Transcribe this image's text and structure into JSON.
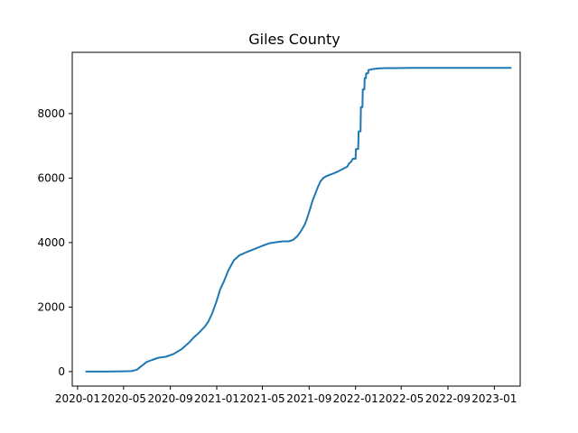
{
  "chart_data": {
    "type": "line",
    "title": "Giles County",
    "xlabel": "",
    "ylabel": "",
    "grid": false,
    "x_is_date": true,
    "xlim": [
      "2019-12-18",
      "2023-03-10"
    ],
    "ylim": [
      -450,
      9900
    ],
    "x_ticks": [
      "2020-01",
      "2020-05",
      "2020-09",
      "2021-01",
      "2021-05",
      "2021-09",
      "2022-01",
      "2022-05",
      "2022-09",
      "2023-01"
    ],
    "y_ticks": [
      0,
      2000,
      4000,
      6000,
      8000
    ],
    "y_tick_labels": [
      "0",
      "2000",
      "4000",
      "6000",
      "8000"
    ],
    "series": [
      {
        "color": "#1f77b4",
        "x": [
          "2020-01-22",
          "2020-03-15",
          "2020-05-01",
          "2020-05-22",
          "2020-06-05",
          "2020-06-20",
          "2020-07-01",
          "2020-07-15",
          "2020-08-01",
          "2020-08-20",
          "2020-09-10",
          "2020-10-01",
          "2020-10-20",
          "2020-11-01",
          "2020-11-15",
          "2020-12-01",
          "2020-12-10",
          "2020-12-20",
          "2021-01-01",
          "2021-01-10",
          "2021-01-20",
          "2021-02-01",
          "2021-02-15",
          "2021-03-01",
          "2021-03-20",
          "2021-04-10",
          "2021-05-01",
          "2021-05-20",
          "2021-06-10",
          "2021-06-25",
          "2021-07-10",
          "2021-07-20",
          "2021-08-01",
          "2021-08-10",
          "2021-08-20",
          "2021-08-25",
          "2021-09-01",
          "2021-09-05",
          "2021-09-10",
          "2021-09-15",
          "2021-09-20",
          "2021-09-25",
          "2021-10-01",
          "2021-10-08",
          "2021-10-15",
          "2021-10-25",
          "2021-11-05",
          "2021-11-15",
          "2021-12-01",
          "2021-12-10",
          "2021-12-15",
          "2021-12-20",
          "2021-12-25",
          "2022-01-01",
          "2022-01-02",
          "2022-01-08",
          "2022-01-09",
          "2022-01-14",
          "2022-01-15",
          "2022-01-19",
          "2022-01-20",
          "2022-01-24",
          "2022-01-25",
          "2022-01-28",
          "2022-01-29",
          "2022-02-03",
          "2022-02-04",
          "2022-02-15",
          "2022-03-01",
          "2022-03-20",
          "2022-04-15",
          "2022-06-01",
          "2022-09-01",
          "2022-12-01",
          "2023-02-15"
        ],
        "values": [
          0,
          0,
          10,
          15,
          60,
          200,
          300,
          360,
          430,
          460,
          550,
          700,
          900,
          1050,
          1200,
          1400,
          1550,
          1800,
          2200,
          2550,
          2800,
          3150,
          3450,
          3600,
          3700,
          3800,
          3900,
          3980,
          4020,
          4040,
          4040,
          4080,
          4200,
          4350,
          4550,
          4700,
          4950,
          5100,
          5300,
          5450,
          5600,
          5750,
          5900,
          6000,
          6050,
          6100,
          6150,
          6200,
          6300,
          6350,
          6450,
          6500,
          6600,
          6600,
          6900,
          6900,
          7450,
          7450,
          8200,
          8200,
          8750,
          8750,
          9100,
          9100,
          9250,
          9250,
          9350,
          9380,
          9400,
          9410,
          9410,
          9420,
          9420,
          9420,
          9420
        ]
      }
    ]
  }
}
